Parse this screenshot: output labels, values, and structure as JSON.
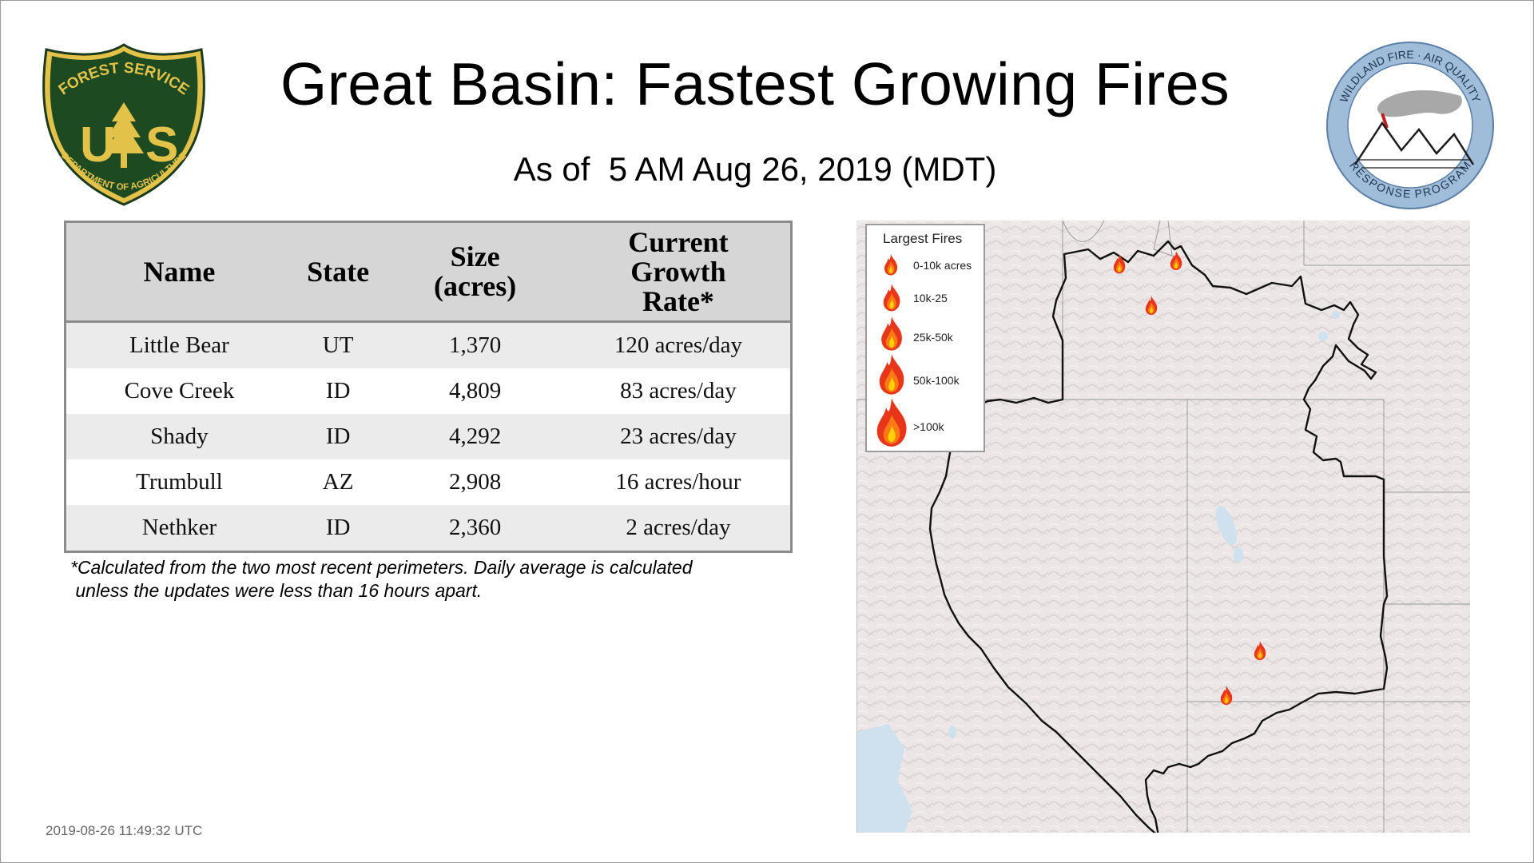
{
  "header": {
    "title": "Great Basin: Fastest Growing Fires",
    "subtitle_prefix": "As of ",
    "subtitle_date": " 5 AM Aug 26, 2019 (MDT)"
  },
  "logos": {
    "forest_service": {
      "icon": "usfs-shield-icon",
      "top_text": "FOREST SERVICE",
      "bottom_text": "DEPARTMENT OF AGRICULTURE",
      "letters_left": "U",
      "letters_right": "S"
    },
    "wildland_fire": {
      "icon": "wildland-fire-air-quality-seal-icon",
      "top_text": "WILDLAND FIRE · AIR QUALITY",
      "bottom_text": "RESPONSE PROGRAM"
    }
  },
  "table": {
    "headers": {
      "name": "Name",
      "state": "State",
      "size_line1": "Size",
      "size_line2": "(acres)",
      "rate_line1": "Current",
      "rate_line2": "Growth",
      "rate_line3": "Rate*"
    },
    "rows": [
      {
        "name": "Little Bear",
        "state": "UT",
        "size": "1,370",
        "rate": "120 acres/day"
      },
      {
        "name": "Cove Creek",
        "state": "ID",
        "size": "4,809",
        "rate": "83 acres/day"
      },
      {
        "name": "Shady",
        "state": "ID",
        "size": "4,292",
        "rate": "23 acres/day"
      },
      {
        "name": "Trumbull",
        "state": "AZ",
        "size": "2,908",
        "rate": "16 acres/hour"
      },
      {
        "name": "Nethker",
        "state": "ID",
        "size": "2,360",
        "rate": "2 acres/day"
      }
    ]
  },
  "footnote": {
    "line1": "*Calculated from the two most recent perimeters. Daily average is calculated",
    "line2": " unless the updates were less than 16 hours apart."
  },
  "legend": {
    "title": "Largest Fires",
    "items": [
      {
        "label": "0-10k acres",
        "icon": "flame-icon"
      },
      {
        "label": "10k-25",
        "icon": "flame-icon"
      },
      {
        "label": "25k-50k",
        "icon": "flame-icon"
      },
      {
        "label": "50k-100k",
        "icon": "flame-icon"
      },
      {
        "label": ">100k",
        "icon": "flame-icon"
      }
    ]
  },
  "map": {
    "type": "terrain map of Great Basin region",
    "fire_markers": 5,
    "colors": {
      "flame_outer": "#e8361a",
      "flame_inner": "#ffb400",
      "terrain": "#ece6e6",
      "water": "#cfe1ef",
      "boundary": "#111111"
    }
  },
  "timestamp": "2019-08-26 11:49:32 UTC"
}
